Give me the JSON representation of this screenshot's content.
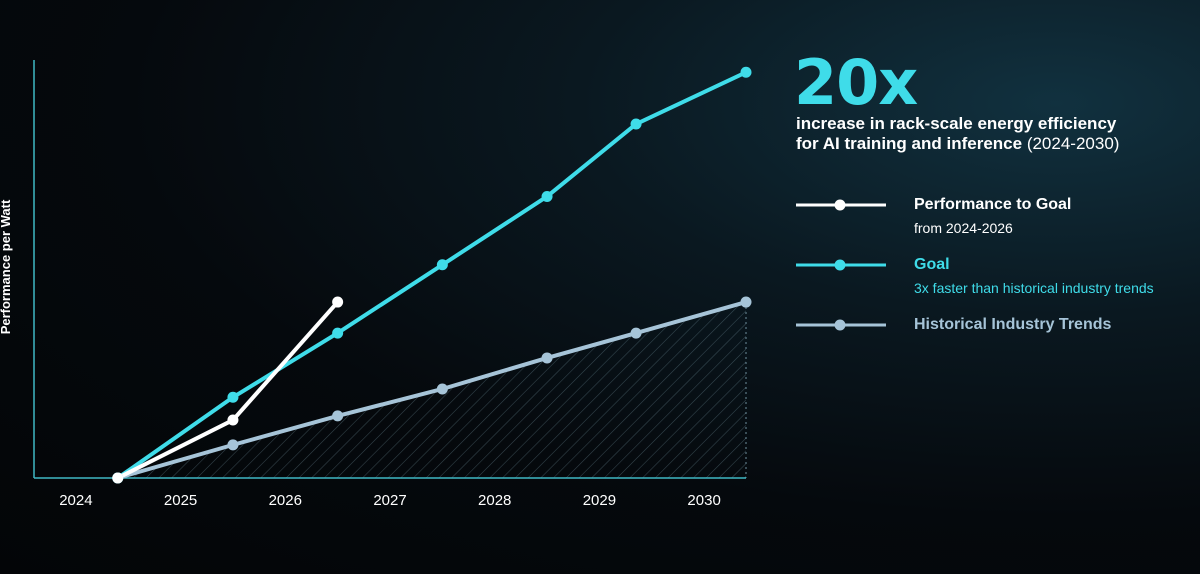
{
  "colors": {
    "actual": "#ffffff",
    "goal": "#3fdce9",
    "historical": "#a6c4d8",
    "axis": "#3fb7c4"
  },
  "headline": {
    "value": "20x",
    "description": "increase in rack-scale energy efficiency\nfor AI training and inference",
    "range": "(2024-2030)"
  },
  "legend": [
    {
      "name": "Performance to Goal",
      "note": "from 2024-2026",
      "series": "actual"
    },
    {
      "name": "Goal",
      "note": "3x faster than historical industry trends",
      "series": "goal"
    },
    {
      "name": "Historical Industry Trends",
      "note": "",
      "series": "historical"
    }
  ],
  "chart_data": {
    "type": "line",
    "ylabel": "Performance per Watt",
    "xlim": [
      2023.6,
      2030.4
    ],
    "ylim": [
      1,
      21
    ],
    "x_ticks": [
      2024,
      2025,
      2026,
      2027,
      2028,
      2029,
      2030
    ],
    "legend_position": "right",
    "grid": false,
    "series": [
      {
        "name": "Performance to Goal",
        "key": "actual",
        "points": [
          [
            2024.4,
            1
          ],
          [
            2025.5,
            3.8
          ],
          [
            2026.5,
            9.5
          ]
        ]
      },
      {
        "name": "Goal",
        "key": "goal",
        "points": [
          [
            2024.4,
            1
          ],
          [
            2025.5,
            4.9
          ],
          [
            2026.5,
            8.0
          ],
          [
            2027.5,
            11.3
          ],
          [
            2028.5,
            14.6
          ],
          [
            2029.35,
            18.1
          ],
          [
            2030.4,
            20.6
          ]
        ]
      },
      {
        "name": "Historical Industry Trends",
        "key": "historical",
        "points": [
          [
            2024.4,
            1
          ],
          [
            2025.5,
            2.6
          ],
          [
            2026.5,
            4.0
          ],
          [
            2027.5,
            5.3
          ],
          [
            2028.5,
            6.8
          ],
          [
            2029.35,
            8.0
          ],
          [
            2030.4,
            9.5
          ]
        ],
        "hatched_area": true
      }
    ]
  }
}
